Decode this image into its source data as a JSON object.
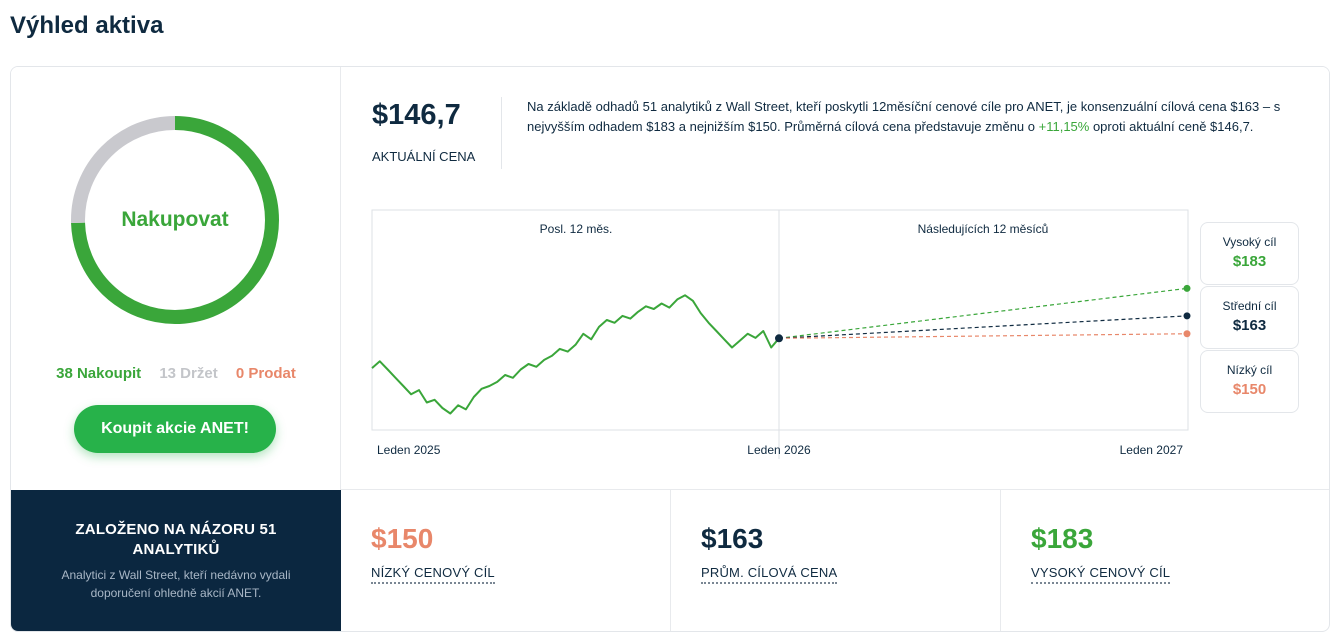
{
  "page_title": "Výhled aktiva",
  "consensus": {
    "label": "Nakupovat",
    "buy_count": 38,
    "hold_count": 13,
    "sell_count": 0,
    "buy_text": "38 Nakoupit",
    "hold_text": "13 Držet",
    "sell_text": "0 Prodat",
    "colors": {
      "buy": "#3aa63a",
      "hold": "#c9c9ce",
      "sell": "#e8876a"
    }
  },
  "buy_button_label": "Koupit akcie ANET!",
  "based_on": {
    "title": "ZALOŽENO NA NÁZORU 51 ANALYTIKŮ",
    "subtitle": "Analytici z Wall Street, kteří nedávno vydali doporučení ohledně akcií ANET."
  },
  "current_price": {
    "value": "$146,7",
    "label": "AKTUÁLNÍ CENA"
  },
  "summary": {
    "before": "Na základě odhadů 51 analytiků z Wall Street, kteří poskytli 12měsíční cenové cíle pro ANET, je konsenzuální cílová cena $163 – s nejvyšším odhadem $183 a nejnižším $150. Průměrná cílová cena představuje změnu o ",
    "percent": "+11,15%",
    "after": " oproti aktuální ceně $146,7."
  },
  "chart_data": {
    "type": "line",
    "past_label": "Posl. 12 měs.",
    "future_label": "Následujících 12 měsíců",
    "x_tick_labels": [
      "Leden 2025",
      "Leden 2026",
      "Leden 2027"
    ],
    "current": 146.7,
    "targets": {
      "high": 183,
      "average": 163,
      "low": 150
    },
    "ylim": [
      80,
      240
    ],
    "past_series": [
      125,
      130,
      124,
      118,
      112,
      106,
      109,
      100,
      102,
      96,
      92,
      98,
      95,
      104,
      110,
      112,
      115,
      120,
      118,
      124,
      128,
      126,
      131,
      134,
      139,
      137,
      142,
      150,
      146,
      155,
      160,
      158,
      163,
      161,
      166,
      170,
      168,
      172,
      169,
      175,
      178,
      174,
      165,
      158,
      152,
      146,
      140,
      145,
      150,
      147,
      152,
      140,
      146.7
    ],
    "colors": {
      "past": "#3aa63a",
      "high": "#3aa63a",
      "average": "#0f2a40",
      "low": "#e8876a"
    }
  },
  "targets": {
    "high": {
      "label": "Vysoký cíl",
      "value": "$183",
      "color": "#3aa63a"
    },
    "average": {
      "label": "Střední cíl",
      "value": "$163",
      "color": "#0f2a40"
    },
    "low": {
      "label": "Nízký cíl",
      "value": "$150",
      "color": "#e8876a"
    }
  },
  "stats": {
    "low": {
      "value": "$150",
      "label": "NÍZKÝ CENOVÝ CÍL",
      "color": "#e8876a"
    },
    "average": {
      "value": "$163",
      "label": "PRŮM. CÍLOVÁ CENA",
      "color": "#0f2a40"
    },
    "high": {
      "value": "$183",
      "label": "VYSOKÝ CENOVÝ CÍL",
      "color": "#3aa63a"
    }
  }
}
